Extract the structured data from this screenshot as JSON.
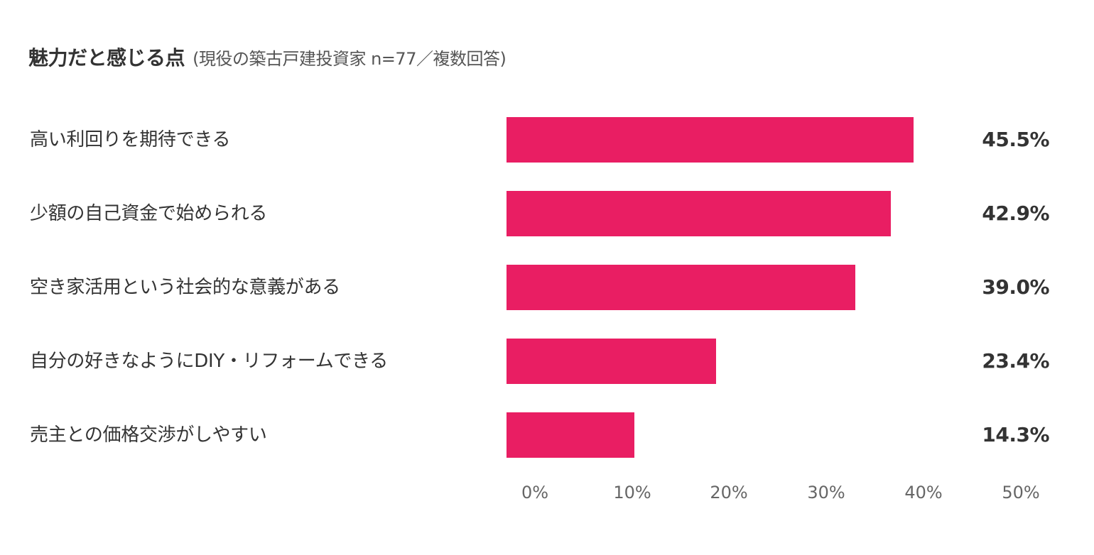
{
  "title": {
    "main": "魅力だと感じる点",
    "sub": "(現役の築古戸建投資家 n=77／複数回答)"
  },
  "colors": {
    "bar": "#E91E63",
    "text": "#333333",
    "tick": "#666666"
  },
  "rows": [
    {
      "label": "高い利回りを期待できる",
      "value": 45.5,
      "value_label": "45.5%"
    },
    {
      "label": "少額の自己資金で始められる",
      "value": 42.9,
      "value_label": "42.9%"
    },
    {
      "label": "空き家活用という社会的な意義がある",
      "value": 39.0,
      "value_label": "39.0%"
    },
    {
      "label": "自分の好きなようにDIY・リフォームできる",
      "value": 23.4,
      "value_label": "23.4%"
    },
    {
      "label": "売主との価格交渉がしやすい",
      "value": 14.3,
      "value_label": "14.3%"
    }
  ],
  "axis": {
    "ticks": [
      "0%",
      "10%",
      "20%",
      "30%",
      "40%",
      "50%"
    ]
  },
  "chart_data": {
    "type": "bar",
    "orientation": "horizontal",
    "title": "魅力だと感じる点",
    "subtitle": "(現役の築古戸建投資家 n=77／複数回答)",
    "categories": [
      "高い利回りを期待できる",
      "少額の自己資金で始められる",
      "空き家活用という社会的な意義がある",
      "自分の好きなようにDIY・リフォームできる",
      "売主との価格交渉がしやすい"
    ],
    "values": [
      45.5,
      42.9,
      39.0,
      23.4,
      14.3
    ],
    "xlabel": "",
    "ylabel": "",
    "xlim": [
      0,
      50
    ],
    "tick_labels": [
      "0%",
      "10%",
      "20%",
      "30%",
      "40%",
      "50%"
    ],
    "grid": false,
    "legend": null,
    "data_labels": [
      "45.5%",
      "42.9%",
      "39.0%",
      "23.4%",
      "14.3%"
    ]
  }
}
